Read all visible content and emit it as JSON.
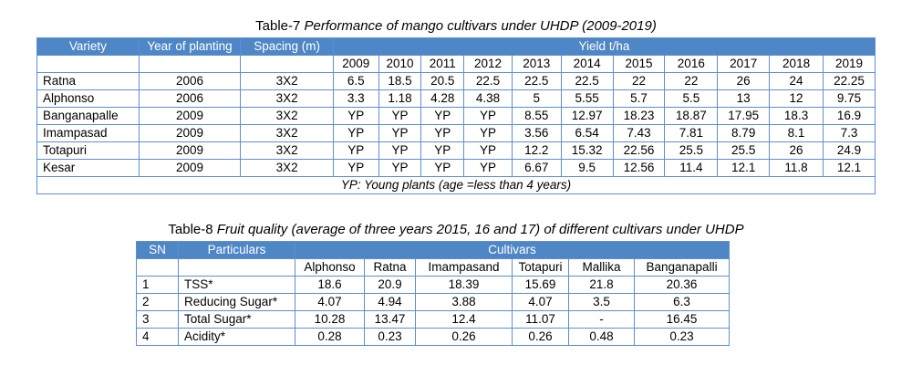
{
  "table7": {
    "caption_prefix": "Table-7 ",
    "caption_italic": "Performance of mango cultivars under UHDP (2009-2019)",
    "headers": {
      "variety": "Variety",
      "year": "Year of planting",
      "spacing": "Spacing (m)",
      "yield": "Yield t/ha"
    },
    "years": [
      "2009",
      "2010",
      "2011",
      "2012",
      "2013",
      "2014",
      "2015",
      "2016",
      "2017",
      "2018",
      "2019"
    ],
    "rows": [
      {
        "variety": "Ratna",
        "year": "2006",
        "spacing": "3X2",
        "values": [
          "6.5",
          "18.5",
          "20.5",
          "22.5",
          "22.5",
          "22.5",
          "22",
          "22",
          "26",
          "24",
          "22.25"
        ]
      },
      {
        "variety": "Alphonso",
        "year": "2006",
        "spacing": "3X2",
        "values": [
          "3.3",
          "1.18",
          "4.28",
          "4.38",
          "5",
          "5.55",
          "5.7",
          "5.5",
          "13",
          "12",
          "9.75"
        ]
      },
      {
        "variety": "Banganapalle",
        "year": "2009",
        "spacing": "3X2",
        "values": [
          "YP",
          "YP",
          "YP",
          "YP",
          "8.55",
          "12.97",
          "18.23",
          "18.87",
          "17.95",
          "18.3",
          "16.9"
        ]
      },
      {
        "variety": "Imampasad",
        "year": "2009",
        "spacing": "3X2",
        "values": [
          "YP",
          "YP",
          "YP",
          "YP",
          "3.56",
          "6.54",
          "7.43",
          "7.81",
          "8.79",
          "8.1",
          "7.3"
        ]
      },
      {
        "variety": "Totapuri",
        "year": "2009",
        "spacing": "3X2",
        "values": [
          "YP",
          "YP",
          "YP",
          "YP",
          "12.2",
          "15.32",
          "22.56",
          "25.5",
          "25.5",
          "26",
          "24.9"
        ]
      },
      {
        "variety": "Kesar",
        "year": "2009",
        "spacing": "3X2",
        "values": [
          "YP",
          "YP",
          "YP",
          "YP",
          "6.67",
          "9.5",
          "12.56",
          "11.4",
          "12.1",
          "11.8",
          "12.1"
        ]
      }
    ],
    "footnote": "YP: Young plants (age =less than 4 years)"
  },
  "table8": {
    "caption_prefix": "Table-8 ",
    "caption_italic": "Fruit quality (average of three years 2015, 16 and 17) of different cultivars under UHDP",
    "headers": {
      "sn": "SN",
      "particulars": "Particulars",
      "cultivars": "Cultivars"
    },
    "cultivars": [
      "Alphonso",
      "Ratna",
      "Imampasand",
      "Totapuri",
      "Mallika",
      "Banganapalli"
    ],
    "rows": [
      {
        "sn": "1",
        "particular": "TSS*",
        "values": [
          "18.6",
          "20.9",
          "18.39",
          "15.69",
          "21.8",
          "20.36"
        ]
      },
      {
        "sn": "2",
        "particular": "Reducing Sugar*",
        "values": [
          "4.07",
          "4.94",
          "3.88",
          "4.07",
          "3.5",
          "6.3"
        ]
      },
      {
        "sn": "3",
        "particular": "Total Sugar*",
        "values": [
          "10.28",
          "13.47",
          "12.4",
          "11.07",
          "-",
          "16.45"
        ]
      },
      {
        "sn": "4",
        "particular": "Acidity*",
        "values": [
          "0.28",
          "0.23",
          "0.26",
          "0.26",
          "0.48",
          "0.23"
        ]
      }
    ]
  }
}
